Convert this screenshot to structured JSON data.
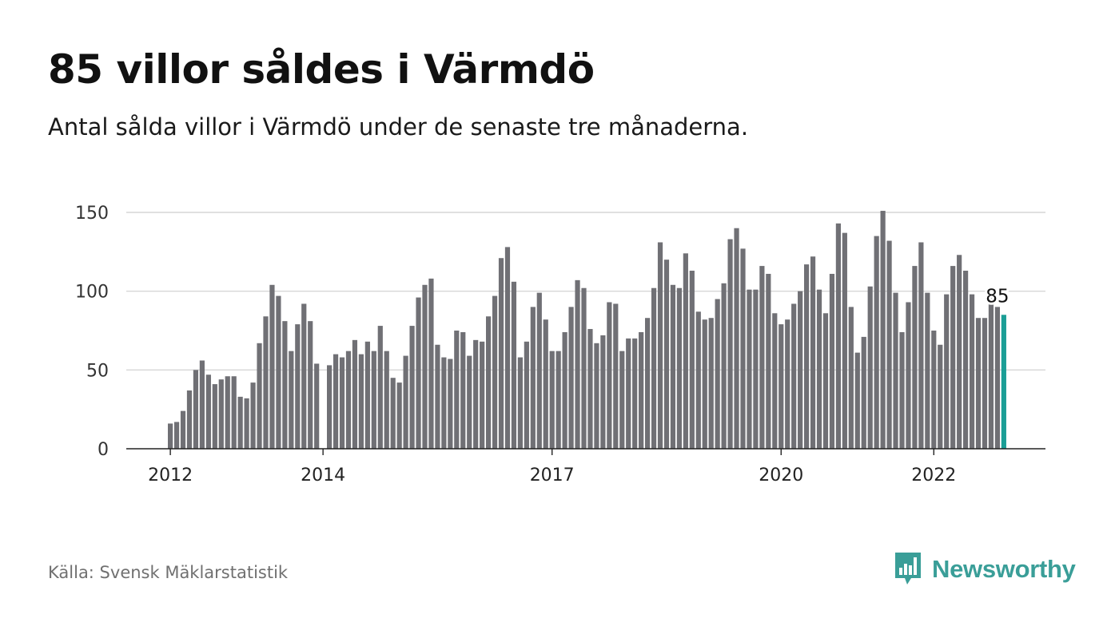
{
  "header": {
    "title": "85 villor såldes i Värmdö",
    "subtitle": "Antal sålda villor i Värmdö under de senaste tre månaderna."
  },
  "footer": {
    "source": "Källa: Svensk Mäklarstatistik",
    "brand": "Newsworthy"
  },
  "colors": {
    "bar": "#707075",
    "highlight": "#1a9e96",
    "grid": "#d6d6d6",
    "axis": "#222222",
    "brand": "#3a9e98"
  },
  "icons": {
    "logo": "speech-bubble-bar-chart-icon"
  },
  "chart_data": {
    "type": "bar",
    "title": "85 villor såldes i Värmdö",
    "subtitle": "Antal sålda villor i Värmdö under de senaste tre månaderna.",
    "xlabel": "",
    "ylabel": "",
    "ylim": [
      0,
      150
    ],
    "yticks": [
      0,
      50,
      100,
      150
    ],
    "xtick_labels": [
      "2012",
      "2014",
      "2017",
      "2020",
      "2022"
    ],
    "grid": true,
    "legend": "none",
    "start_month": "2012-01",
    "highlight_label": "85",
    "values": [
      16,
      17,
      24,
      37,
      50,
      56,
      47,
      41,
      44,
      46,
      46,
      33,
      32,
      42,
      67,
      84,
      104,
      97,
      81,
      62,
      79,
      92,
      81,
      54,
      0,
      53,
      60,
      58,
      62,
      69,
      60,
      68,
      62,
      78,
      62,
      45,
      42,
      59,
      78,
      96,
      104,
      108,
      66,
      58,
      57,
      75,
      74,
      59,
      69,
      68,
      84,
      97,
      121,
      128,
      106,
      58,
      68,
      90,
      99,
      82,
      62,
      62,
      74,
      90,
      107,
      102,
      76,
      67,
      72,
      93,
      92,
      62,
      70,
      70,
      74,
      83,
      102,
      131,
      120,
      104,
      102,
      124,
      113,
      87,
      82,
      83,
      95,
      105,
      133,
      140,
      127,
      101,
      101,
      116,
      111,
      86,
      79,
      82,
      92,
      100,
      117,
      122,
      101,
      86,
      111,
      143,
      137,
      90,
      61,
      71,
      103,
      135,
      151,
      132,
      99,
      74,
      93,
      116,
      131,
      99,
      75,
      66,
      98,
      116,
      123,
      113,
      98,
      83,
      83,
      96,
      90,
      85
    ]
  }
}
